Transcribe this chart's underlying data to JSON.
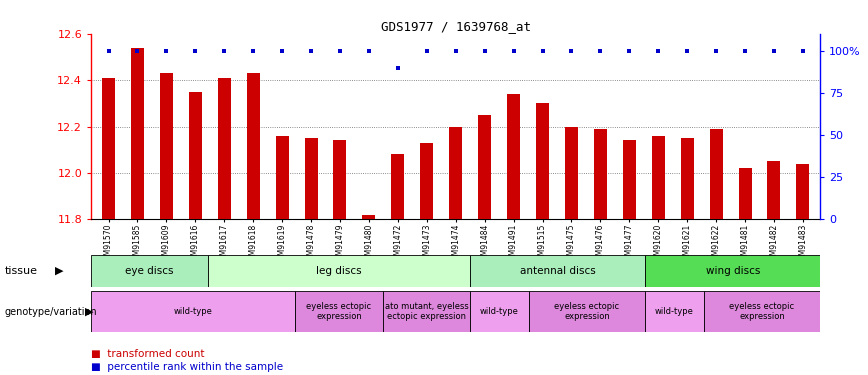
{
  "title": "GDS1977 / 1639768_at",
  "samples": [
    "GSM91570",
    "GSM91585",
    "GSM91609",
    "GSM91616",
    "GSM91617",
    "GSM91618",
    "GSM91619",
    "GSM91478",
    "GSM91479",
    "GSM91480",
    "GSM91472",
    "GSM91473",
    "GSM91474",
    "GSM91484",
    "GSM91491",
    "GSM91515",
    "GSM91475",
    "GSM91476",
    "GSM91477",
    "GSM91620",
    "GSM91621",
    "GSM91622",
    "GSM91481",
    "GSM91482",
    "GSM91483"
  ],
  "bar_values": [
    12.41,
    12.54,
    12.43,
    12.35,
    12.41,
    12.43,
    12.16,
    12.15,
    12.14,
    11.82,
    12.08,
    12.13,
    12.2,
    12.25,
    12.34,
    12.3,
    12.2,
    12.19,
    12.14,
    12.16,
    12.15,
    12.19,
    12.02,
    12.05,
    12.04
  ],
  "percentile_values": [
    100,
    100,
    100,
    100,
    100,
    100,
    100,
    100,
    100,
    100,
    90,
    100,
    100,
    100,
    100,
    100,
    100,
    100,
    100,
    100,
    100,
    100,
    100,
    100,
    100
  ],
  "ymin": 11.8,
  "ymax": 12.6,
  "yticks": [
    11.8,
    12.0,
    12.2,
    12.4,
    12.6
  ],
  "right_ytick_labels": [
    "0",
    "25",
    "50",
    "75",
    "100%"
  ],
  "bar_color": "#cc0000",
  "percentile_color": "#0000cc",
  "tissue_groups": [
    {
      "label": "eye discs",
      "start": 0,
      "end": 4,
      "color": "#aaeebb"
    },
    {
      "label": "leg discs",
      "start": 4,
      "end": 13,
      "color": "#ccffcc"
    },
    {
      "label": "antennal discs",
      "start": 13,
      "end": 19,
      "color": "#aaeebb"
    },
    {
      "label": "wing discs",
      "start": 19,
      "end": 25,
      "color": "#55dd55"
    }
  ],
  "genotype_groups": [
    {
      "label": "wild-type",
      "start": 0,
      "end": 7,
      "color": "#eea0ee"
    },
    {
      "label": "eyeless ectopic\nexpression",
      "start": 7,
      "end": 10,
      "color": "#dd88dd"
    },
    {
      "label": "ato mutant, eyeless\nectopic expression",
      "start": 10,
      "end": 13,
      "color": "#dd88dd"
    },
    {
      "label": "wild-type",
      "start": 13,
      "end": 15,
      "color": "#eea0ee"
    },
    {
      "label": "eyeless ectopic\nexpression",
      "start": 15,
      "end": 19,
      "color": "#dd88dd"
    },
    {
      "label": "wild-type",
      "start": 19,
      "end": 21,
      "color": "#eea0ee"
    },
    {
      "label": "eyeless ectopic\nexpression",
      "start": 21,
      "end": 25,
      "color": "#dd88dd"
    }
  ],
  "tissue_label": "tissue",
  "genotype_label": "genotype/variation",
  "legend_bar_label": "transformed count",
  "legend_pct_label": "percentile rank within the sample",
  "background_color": "#ffffff",
  "grid_lines": [
    12.0,
    12.2,
    12.4
  ]
}
